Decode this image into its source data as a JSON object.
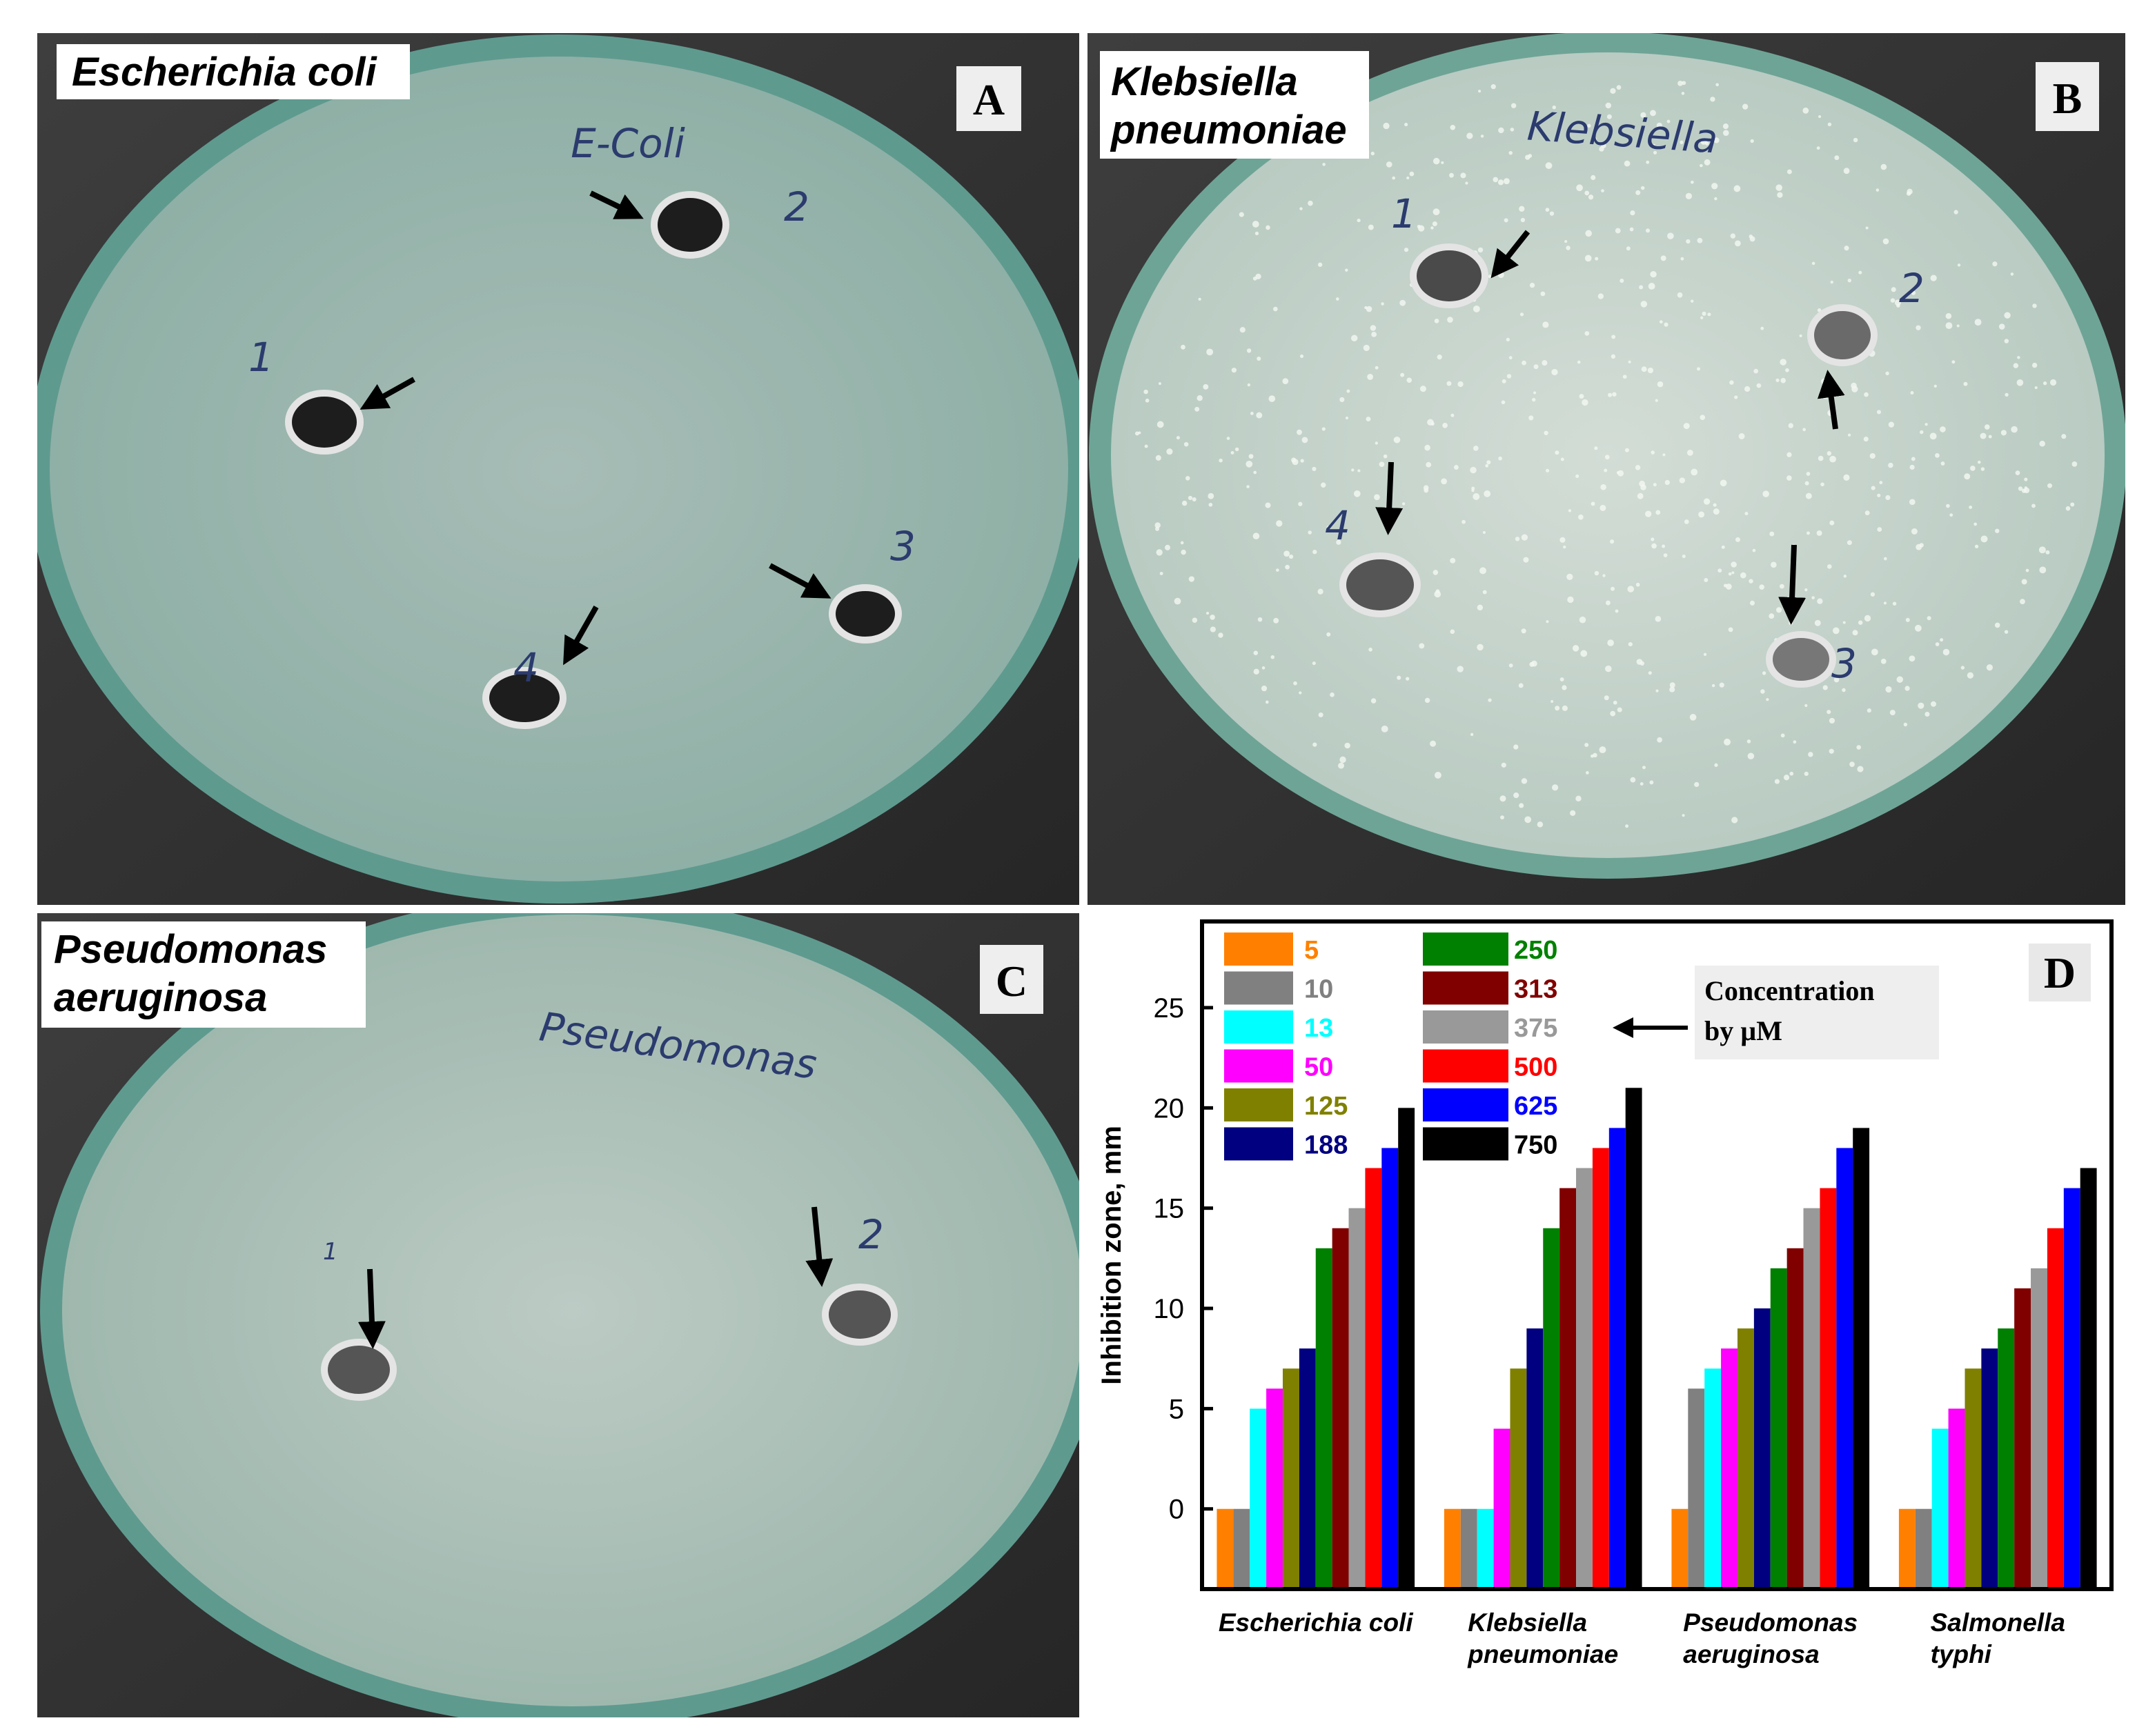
{
  "panels": [
    {
      "letter": "A",
      "organism": [
        "Escherichia coli"
      ],
      "plate_writing": [
        "E-Coli",
        "1",
        "2",
        "3",
        "4"
      ]
    },
    {
      "letter": "B",
      "organism": [
        "Klebsiella",
        "pneumoniae"
      ],
      "plate_writing": [
        "Klebsiella",
        "1",
        "2",
        "3",
        "4"
      ]
    },
    {
      "letter": "C",
      "organism": [
        "Pseudomonas",
        "aeruginosa"
      ],
      "plate_writing": [
        "Pseudomonas",
        "1",
        "2"
      ]
    }
  ],
  "chart_panel": {
    "letter": "D"
  },
  "chart_data": {
    "type": "bar",
    "ylabel": "Inhibition zone, mm",
    "annotation": "Concentration\nby µM",
    "categories": [
      "Escherichia coli",
      "Klebsiella\npneumoniae",
      "Pseudomonas\naeruginosa",
      "Salmonella\ntyphi"
    ],
    "ylim": [
      -4,
      29.3
    ],
    "yticks": [
      0,
      5,
      10,
      15,
      20,
      25
    ],
    "series": [
      {
        "name": "5",
        "color": "#ff8000",
        "values": [
          0,
          0,
          0,
          0
        ]
      },
      {
        "name": "10",
        "color": "#808080",
        "values": [
          0,
          0,
          6,
          0
        ]
      },
      {
        "name": "13",
        "color": "#00ffff",
        "values": [
          5,
          0,
          7,
          4
        ]
      },
      {
        "name": "50",
        "color": "#ff00ff",
        "values": [
          6,
          4,
          8,
          5
        ]
      },
      {
        "name": "125",
        "color": "#808000",
        "values": [
          7,
          7,
          9,
          7
        ]
      },
      {
        "name": "188",
        "color": "#000080",
        "values": [
          8,
          9,
          10,
          8
        ]
      },
      {
        "name": "250",
        "color": "#008000",
        "values": [
          13,
          14,
          12,
          9
        ]
      },
      {
        "name": "313",
        "color": "#800000",
        "values": [
          14,
          16,
          13,
          11
        ]
      },
      {
        "name": "375",
        "color": "#999999",
        "values": [
          15,
          17,
          15,
          12
        ]
      },
      {
        "name": "500",
        "color": "#ff0000",
        "values": [
          17,
          18,
          16,
          14
        ]
      },
      {
        "name": "625",
        "color": "#0000ff",
        "values": [
          18,
          19,
          18,
          16
        ]
      },
      {
        "name": "750",
        "color": "#000000",
        "values": [
          20,
          21,
          19,
          17
        ]
      }
    ]
  }
}
